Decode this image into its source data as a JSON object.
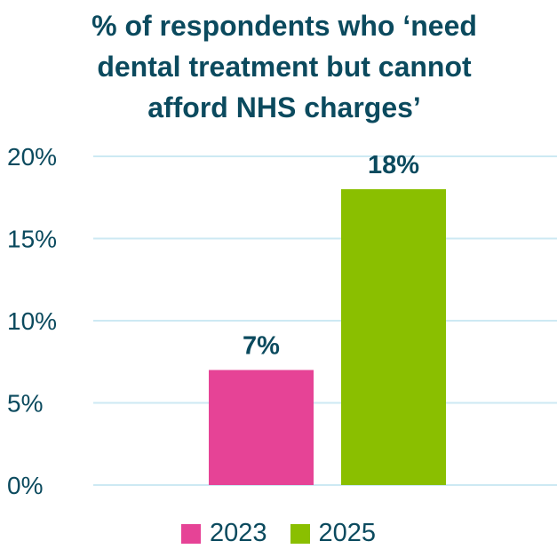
{
  "chart_data": {
    "type": "bar",
    "title_lines": [
      "% of respondents who ‘need",
      "dental treatment but cannot",
      "afford NHS charges’"
    ],
    "categories": [
      "2023",
      "2025"
    ],
    "values": [
      7,
      18
    ],
    "value_labels": [
      "7%",
      "18%"
    ],
    "colors": [
      "#e64396",
      "#8abf00"
    ],
    "yticks": [
      "0%",
      "5%",
      "10%",
      "15%",
      "20%"
    ],
    "ytick_values": [
      0,
      5,
      10,
      15,
      20
    ],
    "ylim": [
      0,
      20
    ],
    "grid": true,
    "grid_color": "#cde9f3",
    "text_color": "#0b4a5e",
    "legend": {
      "placement": "bottom",
      "items": [
        {
          "label": "2023",
          "color": "#e64396"
        },
        {
          "label": "2025",
          "color": "#8abf00"
        }
      ]
    }
  }
}
